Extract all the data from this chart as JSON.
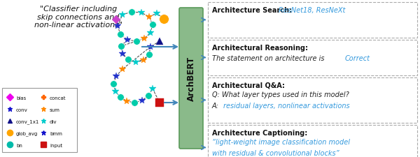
{
  "bg_color": "#ffffff",
  "title_text": "\"Classifier including\nskip connections and\nnon-linear activations\"",
  "archbert_label": "ArchBERT",
  "legend_items": [
    {
      "label": "bias",
      "marker": "D",
      "color": "#ee00ee"
    },
    {
      "label": "concat",
      "marker": "+",
      "color": "#ff6600"
    },
    {
      "label": "conv",
      "marker": "*",
      "color": "#1111cc"
    },
    {
      "label": "sum",
      "marker": "*",
      "color": "#ff8800"
    },
    {
      "label": "conv_1x1",
      "marker": "^",
      "color": "#111188"
    },
    {
      "label": "div",
      "marker": "*",
      "color": "#00cccc"
    },
    {
      "label": "glob_avg",
      "marker": "o",
      "color": "#ffa500"
    },
    {
      "label": "bmm",
      "marker": "*",
      "color": "#1111cc"
    },
    {
      "label": "bn",
      "marker": "o",
      "color": "#00bbaa"
    },
    {
      "label": "input",
      "marker": "s",
      "color": "#cc1111"
    }
  ],
  "arrow_color": "#4488bb",
  "archbert_box_color": "#8aba8a",
  "archbert_edge_color": "#5a9a5a",
  "graph_colors": {
    "cyan_circ": "#00ccaa",
    "blue_star": "#2233cc",
    "orange_star": "#ff8800",
    "cyan_star": "#00cccc",
    "orange_circ": "#ffa500",
    "dk_tri": "#111188",
    "red_sq": "#cc1111",
    "pink_dia": "#cc44cc"
  },
  "task_titles": [
    "Architecture Search: ",
    "Architectural Reasoning:",
    "Architectural Q&A:",
    "Architecture Captioning:"
  ],
  "task_bodies": [
    [
      {
        "t": "ResNet18, ResNeXt",
        "c": "#3399dd",
        "i": true
      }
    ],
    [
      {
        "t": "The statement on architecture is ",
        "c": "#222222",
        "i": true
      },
      {
        "t": "Correct",
        "c": "#3399dd",
        "i": true
      }
    ],
    [
      {
        "t": "Q: What layer types used in this model?",
        "c": "#222222",
        "i": true,
        "nl": true
      },
      {
        "t": "A: ",
        "c": "#222222",
        "i": true,
        "nl": false
      },
      {
        "t": "residual layers, nonlinear activations",
        "c": "#3399dd",
        "i": true,
        "nl": false
      }
    ],
    [
      {
        "t": "“light-weight image classification model\nwith residual & convolutional blocks”",
        "c": "#3399dd",
        "i": true
      }
    ]
  ]
}
